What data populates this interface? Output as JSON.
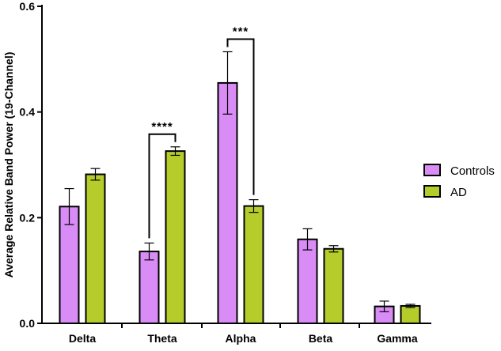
{
  "chart_data": {
    "type": "bar",
    "title": "",
    "xlabel": "",
    "ylabel": "Average Relative Band Power (19-Channel)",
    "ylim": [
      0,
      0.6
    ],
    "yticks": [
      "0.0",
      "0.2",
      "0.4",
      "0.6"
    ],
    "ytick_values": [
      0.0,
      0.2,
      0.4,
      0.6
    ],
    "categories": [
      "Delta",
      "Theta",
      "Alpha",
      "Beta",
      "Gamma"
    ],
    "series": [
      {
        "name": "Controls",
        "color": "#d98cf5",
        "values": [
          0.221,
          0.136,
          0.455,
          0.159,
          0.032
        ],
        "errors": [
          0.034,
          0.016,
          0.059,
          0.02,
          0.01
        ]
      },
      {
        "name": "AD",
        "color": "#b5cc2b",
        "values": [
          0.282,
          0.326,
          0.222,
          0.141,
          0.033
        ],
        "errors": [
          0.011,
          0.008,
          0.012,
          0.006,
          0.003
        ]
      }
    ],
    "annotations": [
      {
        "category": "Theta",
        "text": "****"
      },
      {
        "category": "Alpha",
        "text": "***"
      }
    ],
    "legend_position": "right",
    "grid": false
  }
}
